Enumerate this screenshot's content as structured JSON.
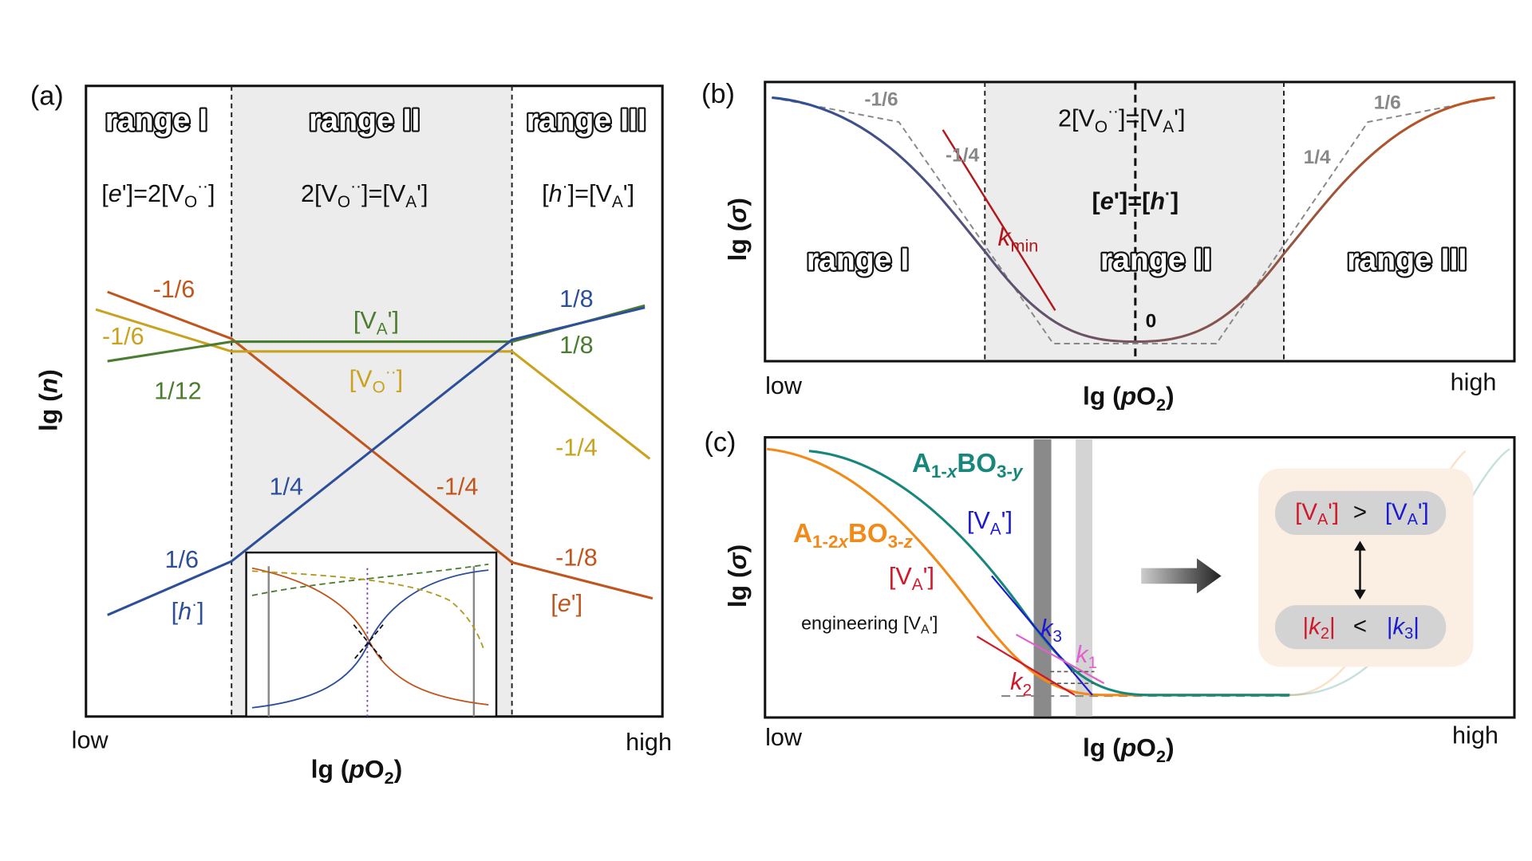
{
  "panel_a": {
    "label": "(a)",
    "ranges": [
      "range I",
      "range II",
      "range III"
    ],
    "conditions": [
      [
        "[",
        {
          "text": "e",
          "style": "italic"
        },
        "']=2[V",
        {
          "text": "O",
          "style": "sub"
        },
        {
          "text": "··",
          "style": "sup"
        },
        "]"
      ],
      [
        "2[V",
        {
          "text": "O",
          "style": "sub"
        },
        {
          "text": "··",
          "style": "sup"
        },
        "]=[V",
        {
          "text": "A",
          "style": "sub"
        },
        "']"
      ],
      [
        "[",
        {
          "text": "h",
          "style": "italic"
        },
        {
          "text": "·",
          "style": "sup"
        },
        "]=[V",
        {
          "text": "A",
          "style": "sub"
        },
        "']"
      ]
    ],
    "line_labels": [
      "-1/6",
      "-1/6",
      "1/12",
      [
        "[V",
        {
          "text": "A",
          "style": "sub"
        },
        "']"
      ],
      [
        "[V",
        {
          "text": "O",
          "style": "sub"
        },
        {
          "text": "··",
          "style": "sup"
        },
        "]"
      ],
      "1/8",
      "1/8",
      "-1/4",
      "1/4",
      "-1/4",
      "1/6",
      [
        "[",
        {
          "text": "h",
          "style": "italic"
        },
        {
          "text": "·",
          "style": "sup"
        },
        "]"
      ],
      "-1/8",
      [
        "[",
        {
          "text": "e",
          "style": "italic"
        },
        "']"
      ]
    ],
    "x_low": "low",
    "x_high": "high",
    "x_label": [
      "lg (",
      {
        "text": "p",
        "style": "italic"
      },
      "O",
      {
        "text": "2",
        "style": "sub"
      },
      ")"
    ],
    "y_label": [
      "lg (",
      {
        "text": "n",
        "style": "italic"
      },
      ")"
    ]
  },
  "panel_b": {
    "label": "(b)",
    "slopes": [
      "-1/6",
      "-1/4",
      "1/6",
      "1/4",
      "0"
    ],
    "conditions": [
      [
        "2[V",
        {
          "text": "O",
          "style": "sub"
        },
        {
          "text": "··",
          "style": "sup"
        },
        "]=[V",
        {
          "text": "A",
          "style": "sub"
        },
        "']"
      ],
      [
        "[",
        {
          "text": "e",
          "style": "italic"
        },
        "']=[",
        {
          "text": "h",
          "style": "italic"
        },
        {
          "text": "·",
          "style": "sup"
        },
        "]"
      ]
    ],
    "tangent_label": [
      {
        "text": "k",
        "style": "italic"
      },
      {
        "text": "min",
        "style": "sub"
      }
    ],
    "ranges": [
      "range I",
      "range II",
      "range III"
    ],
    "x_low": "low",
    "x_high": "high",
    "x_label": [
      "lg (",
      {
        "text": "p",
        "style": "italic"
      },
      "O",
      {
        "text": "2",
        "style": "sub"
      },
      ")"
    ],
    "y_label": [
      "lg (",
      {
        "text": "σ",
        "style": "italic"
      },
      ")"
    ]
  },
  "panel_c": {
    "label": "(c)",
    "materials": [
      [
        "A",
        {
          "text": "1-",
          "style": "sub"
        },
        {
          "text": "x",
          "style": "sub-italic"
        },
        "BO",
        {
          "text": "3-",
          "style": "sub"
        },
        {
          "text": "y",
          "style": "sub-italic"
        }
      ],
      [
        "A",
        {
          "text": "1-2",
          "style": "sub"
        },
        {
          "text": "x",
          "style": "sub-italic"
        },
        "BO",
        {
          "text": "3-",
          "style": "sub"
        },
        {
          "text": "z",
          "style": "sub-italic"
        }
      ]
    ],
    "vacancy_labels": [
      [
        "[V",
        {
          "text": "A",
          "style": "sub"
        },
        "']"
      ],
      [
        "[V",
        {
          "text": "A",
          "style": "sub"
        },
        "']"
      ]
    ],
    "annotation": [
      "engineering [V",
      {
        "text": "A",
        "style": "sub"
      },
      "']"
    ],
    "k_labels": [
      [
        {
          "text": "k",
          "style": "italic"
        },
        {
          "text": "3",
          "style": "sub"
        }
      ],
      [
        {
          "text": "k",
          "style": "italic"
        },
        {
          "text": "1",
          "style": "sub"
        }
      ],
      [
        {
          "text": "k",
          "style": "italic"
        },
        {
          "text": "2",
          "style": "sub"
        }
      ]
    ],
    "comparison_vacancy": {
      "left": [
        "[V",
        {
          "text": "A",
          "style": "sub"
        },
        "']"
      ],
      "op": ">",
      "right": [
        "[V",
        {
          "text": "A",
          "style": "sub"
        },
        "']"
      ]
    },
    "comparison_k": {
      "left": [
        "|",
        {
          "text": "k",
          "style": "italic"
        },
        {
          "text": "2",
          "style": "sub"
        },
        "|"
      ],
      "op": "<",
      "right": [
        "|",
        {
          "text": "k",
          "style": "italic"
        },
        {
          "text": "3",
          "style": "sub"
        },
        "|"
      ]
    },
    "x_low": "low",
    "x_high": "high",
    "x_label": [
      "lg (",
      {
        "text": "p",
        "style": "italic"
      },
      "O",
      {
        "text": "2",
        "style": "sub"
      },
      ")"
    ],
    "y_label": [
      "lg (",
      {
        "text": "σ",
        "style": "italic"
      },
      ")"
    ]
  }
}
